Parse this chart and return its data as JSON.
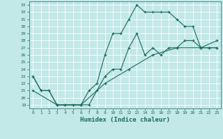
{
  "title": "",
  "xlabel": "Humidex (Indice chaleur)",
  "background_color": "#c2e8e8",
  "line_color": "#1a6b5a",
  "grid_color": "#ffffff",
  "xlim": [
    -0.5,
    23.5
  ],
  "ylim": [
    18.5,
    33.5
  ],
  "yticks": [
    19,
    20,
    21,
    22,
    23,
    24,
    25,
    26,
    27,
    28,
    29,
    30,
    31,
    32,
    33
  ],
  "xticks": [
    0,
    1,
    2,
    3,
    4,
    5,
    6,
    7,
    8,
    9,
    10,
    11,
    12,
    13,
    14,
    15,
    16,
    17,
    18,
    19,
    20,
    21,
    22,
    23
  ],
  "line1_x": [
    0,
    1,
    2,
    3,
    4,
    5,
    6,
    7,
    8,
    9,
    10,
    11,
    12,
    13,
    14,
    15,
    16,
    17,
    18,
    19,
    20,
    21,
    22,
    23
  ],
  "line1_y": [
    23,
    21,
    21,
    19,
    19,
    19,
    19,
    19,
    21,
    23,
    24,
    24,
    27,
    29,
    26,
    27,
    26,
    27,
    27,
    28,
    28,
    27,
    27,
    27
  ],
  "line2_x": [
    0,
    1,
    2,
    3,
    4,
    5,
    6,
    7,
    8,
    9,
    10,
    11,
    12,
    13,
    14,
    15,
    16,
    17,
    18,
    19,
    20,
    21,
    22,
    23
  ],
  "line2_y": [
    23,
    21,
    21,
    19,
    19,
    19,
    19,
    21,
    22,
    26,
    29,
    29,
    31,
    33,
    32,
    32,
    32,
    32,
    31,
    30,
    30,
    27,
    27,
    27
  ],
  "line3_x": [
    0,
    3,
    6,
    9,
    12,
    15,
    18,
    21,
    23
  ],
  "line3_y": [
    21,
    19,
    19,
    22,
    24,
    26,
    27,
    27,
    28
  ]
}
